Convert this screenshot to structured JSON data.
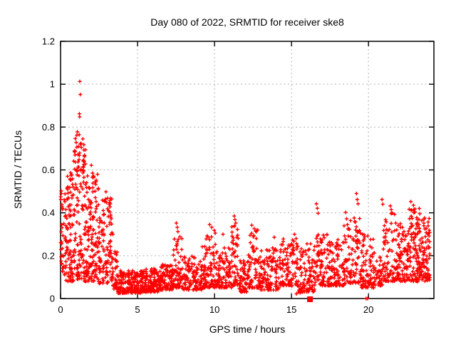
{
  "window": {
    "background": "#ffffff"
  },
  "chart_data": {
    "type": "scatter",
    "title": "Day 080 of 2022, SRMTID for receiver ske8",
    "xlabel": "GPS time / hours",
    "ylabel": "SRMTID / TECUs",
    "xlim": [
      0,
      24.25
    ],
    "ylim": [
      0,
      1.2
    ],
    "xticks": [
      0,
      5,
      10,
      15,
      20
    ],
    "xtick_labels": [
      "0",
      "5",
      "10",
      "15",
      "20"
    ],
    "yticks": [
      0,
      0.2,
      0.4,
      0.6,
      0.8,
      1,
      1.2
    ],
    "ytick_labels": [
      "0",
      "0.2",
      "0.4",
      "0.6",
      "0.8",
      "1",
      "1.2"
    ],
    "grid": true,
    "grid_color": "#b3b3b3",
    "marker": "plus",
    "marker_color": "#ff0000",
    "axis_color": "#000000",
    "legend": "none",
    "density_profile": [
      [
        0.0,
        0.35,
        40,
        0.1,
        0.5,
        1.2
      ],
      [
        0.35,
        0.9,
        90,
        0.08,
        0.62,
        1.4
      ],
      [
        0.9,
        1.7,
        130,
        0.08,
        0.78,
        1.4
      ],
      [
        1.7,
        2.5,
        120,
        0.08,
        0.58,
        1.4
      ],
      [
        2.5,
        3.4,
        110,
        0.07,
        0.47,
        1.3
      ],
      [
        3.4,
        3.7,
        30,
        0.04,
        0.22,
        1.5
      ],
      [
        3.7,
        5.2,
        170,
        0.025,
        0.13,
        1.6
      ],
      [
        5.2,
        6.4,
        140,
        0.03,
        0.14,
        1.6
      ],
      [
        6.4,
        7.3,
        100,
        0.04,
        0.16,
        1.6
      ],
      [
        7.3,
        7.9,
        60,
        0.05,
        0.3,
        1.8
      ],
      [
        7.9,
        9.2,
        115,
        0.04,
        0.2,
        1.8
      ],
      [
        9.2,
        10.1,
        90,
        0.05,
        0.3,
        1.9
      ],
      [
        10.1,
        11.1,
        90,
        0.05,
        0.24,
        1.8
      ],
      [
        11.1,
        11.6,
        50,
        0.06,
        0.36,
        1.8
      ],
      [
        11.6,
        12.2,
        60,
        0.03,
        0.18,
        1.7
      ],
      [
        12.2,
        13.0,
        80,
        0.05,
        0.32,
        1.9
      ],
      [
        13.0,
        14.2,
        110,
        0.04,
        0.24,
        1.8
      ],
      [
        14.2,
        15.4,
        110,
        0.06,
        0.28,
        1.8
      ],
      [
        15.4,
        16.5,
        90,
        0.03,
        0.26,
        1.8
      ],
      [
        16.5,
        17.4,
        80,
        0.06,
        0.3,
        1.8
      ],
      [
        17.4,
        18.4,
        90,
        0.06,
        0.28,
        1.8
      ],
      [
        18.4,
        19.5,
        100,
        0.07,
        0.38,
        1.8
      ],
      [
        19.5,
        20.35,
        80,
        0.05,
        0.3,
        1.8
      ],
      [
        20.35,
        20.9,
        40,
        0.06,
        0.22,
        1.9
      ],
      [
        20.9,
        21.8,
        80,
        0.08,
        0.4,
        1.8
      ],
      [
        21.8,
        22.6,
        90,
        0.08,
        0.35,
        1.7
      ],
      [
        22.6,
        23.4,
        110,
        0.08,
        0.42,
        1.6
      ],
      [
        23.4,
        24.0,
        80,
        0.08,
        0.38,
        1.7
      ]
    ],
    "outliers": [
      [
        1.25,
        1.013
      ],
      [
        1.28,
        0.952
      ],
      [
        1.22,
        0.862
      ],
      [
        1.24,
        0.848
      ],
      [
        1.05,
        0.762
      ],
      [
        1.45,
        0.745
      ],
      [
        1.02,
        0.728
      ],
      [
        1.35,
        0.705
      ],
      [
        0.95,
        0.688
      ],
      [
        1.12,
        0.672
      ],
      [
        1.55,
        0.662
      ],
      [
        1.2,
        0.648
      ],
      [
        0.85,
        0.641
      ],
      [
        1.62,
        0.628
      ],
      [
        2.0,
        0.622
      ],
      [
        1.48,
        0.612
      ],
      [
        0.92,
        0.604
      ],
      [
        1.3,
        0.598
      ],
      [
        2.08,
        0.585
      ],
      [
        1.75,
        0.572
      ],
      [
        2.15,
        0.565
      ],
      [
        0.78,
        0.558
      ],
      [
        2.3,
        0.545
      ],
      [
        0.04,
        0.502
      ],
      [
        0.02,
        0.462
      ],
      [
        0.09,
        0.438
      ],
      [
        0.13,
        0.421
      ],
      [
        2.95,
        0.498
      ],
      [
        3.05,
        0.468
      ],
      [
        2.88,
        0.452
      ],
      [
        3.15,
        0.44
      ],
      [
        7.52,
        0.352
      ],
      [
        7.58,
        0.332
      ],
      [
        7.62,
        0.312
      ],
      [
        9.68,
        0.345
      ],
      [
        9.82,
        0.332
      ],
      [
        9.98,
        0.318
      ],
      [
        10.05,
        0.305
      ],
      [
        10.55,
        0.3
      ],
      [
        11.28,
        0.385
      ],
      [
        11.33,
        0.368
      ],
      [
        11.38,
        0.352
      ],
      [
        12.42,
        0.342
      ],
      [
        12.58,
        0.326
      ],
      [
        12.72,
        0.312
      ],
      [
        13.88,
        0.286
      ],
      [
        15.2,
        0.3
      ],
      [
        16.62,
        0.442
      ],
      [
        16.68,
        0.421
      ],
      [
        16.73,
        0.398
      ],
      [
        18.52,
        0.402
      ],
      [
        18.58,
        0.372
      ],
      [
        19.22,
        0.49
      ],
      [
        19.27,
        0.462
      ],
      [
        19.32,
        0.442
      ],
      [
        20.88,
        0.462
      ],
      [
        20.93,
        0.44
      ],
      [
        21.42,
        0.432
      ],
      [
        21.48,
        0.415
      ],
      [
        21.55,
        0.398
      ],
      [
        22.75,
        0.452
      ],
      [
        22.92,
        0.435
      ],
      [
        23.02,
        0.418
      ],
      [
        22.96,
        0.402
      ],
      [
        23.3,
        0.42
      ],
      [
        15.32,
        0.022
      ],
      [
        15.44,
        0.03
      ],
      [
        15.56,
        0.026
      ],
      [
        15.98,
        0.032
      ],
      [
        16.06,
        0.04
      ],
      [
        16.35,
        0.042
      ],
      [
        19.84,
        0.0
      ],
      [
        19.94,
        0.0
      ]
    ],
    "special_markers": [
      {
        "shape": "filled-square",
        "x": 16.2,
        "y": 0.0,
        "size": 8
      }
    ]
  }
}
